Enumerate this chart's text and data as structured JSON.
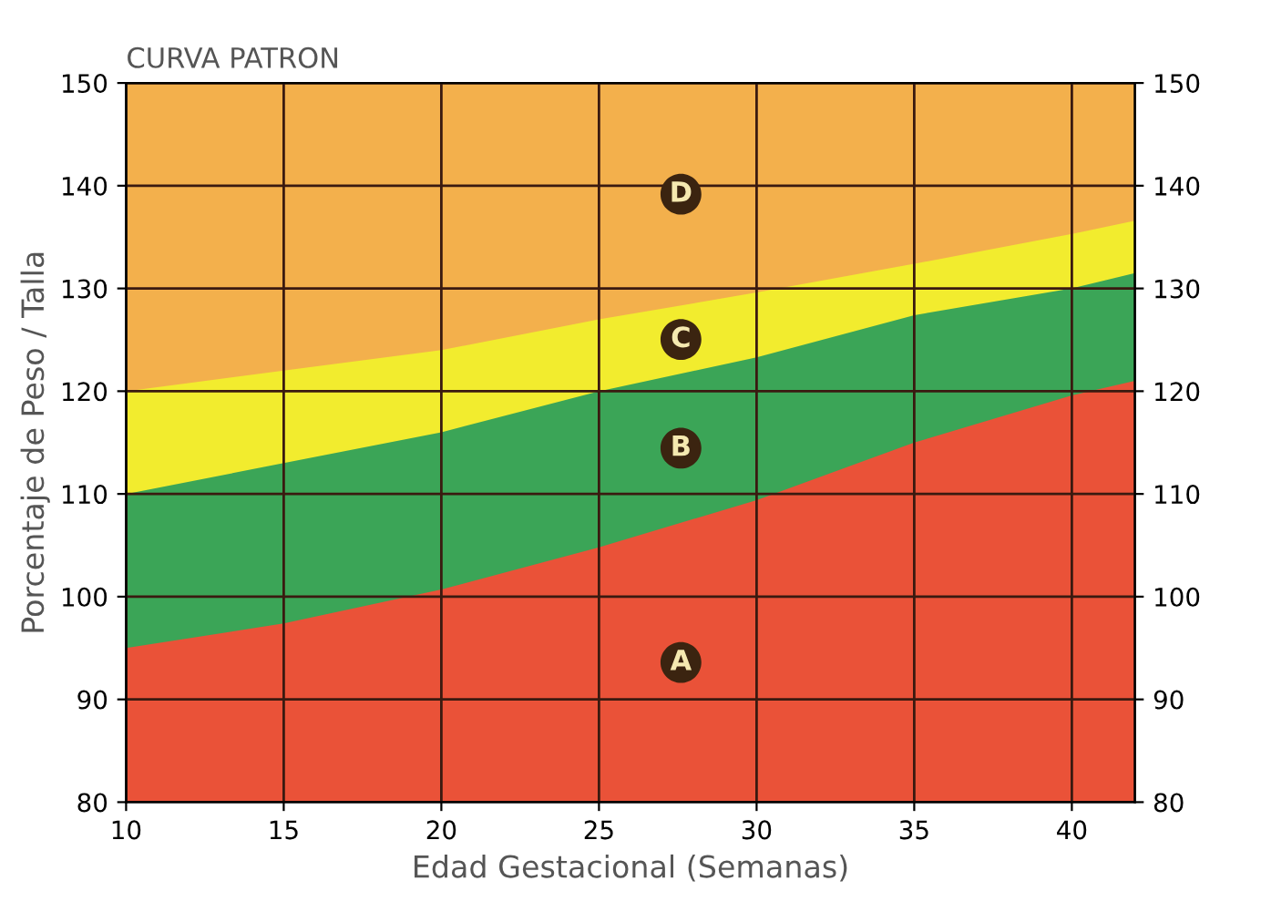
{
  "chart_data": {
    "type": "area",
    "title": "CURVA PATRON",
    "xlabel": "Edad Gestacional (Semanas)",
    "ylabel": "Porcentaje de Peso / Talla",
    "x": [
      10,
      15,
      20,
      25,
      30,
      35,
      40,
      42
    ],
    "series": [
      {
        "color": "#f3b04c",
        "values": [
          150,
          150,
          150,
          150,
          150,
          150,
          150,
          150
        ]
      },
      {
        "color": "#f2ec2e",
        "values": [
          120,
          122,
          124,
          127,
          129.6,
          132.4,
          135.3,
          136.6
        ]
      },
      {
        "color": "#3ba557",
        "values": [
          110,
          113,
          116,
          120,
          123.3,
          127.4,
          130,
          131.5
        ]
      },
      {
        "color": "#ea5238",
        "values": [
          95,
          97.4,
          100.7,
          104.8,
          109.4,
          115,
          119.6,
          121
        ]
      }
    ],
    "annotations": [
      "D",
      "C",
      "B",
      "A"
    ],
    "xlim": [
      10,
      42
    ],
    "xticks": [
      10,
      15,
      20,
      25,
      30,
      35,
      40
    ],
    "ylim": [
      80,
      150
    ],
    "yticks": [
      80,
      90,
      100,
      110,
      120,
      130,
      140,
      150
    ],
    "y2lim": [
      80,
      150
    ],
    "y2ticks": [
      80,
      90,
      100,
      110,
      120,
      130,
      140,
      150
    ],
    "grid": true
  }
}
